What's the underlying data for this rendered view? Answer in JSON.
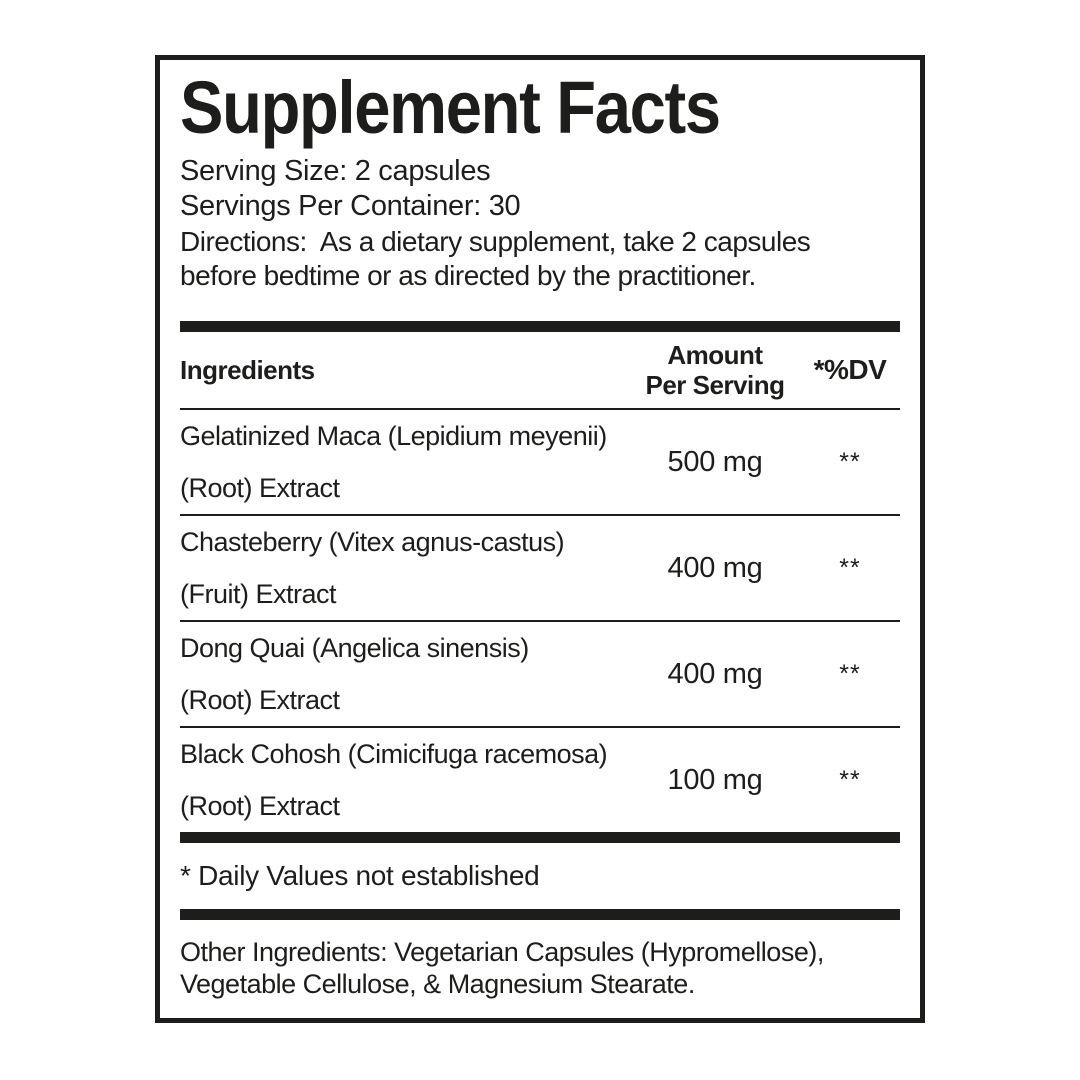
{
  "label": {
    "title": "Supplement Facts",
    "serving_size": "Serving Size: 2 capsules",
    "servings_per_container": "Servings Per Container: 30",
    "directions": "Directions:  As a dietary supplement, take 2 capsules\nbefore bedtime or as directed by the practitioner.",
    "table": {
      "headers": {
        "ingredients": "Ingredients",
        "amount_line1": "Amount",
        "amount_line2": "Per Serving",
        "dv": "*%DV"
      },
      "rows": [
        {
          "name_line1": "Gelatinized Maca (Lepidium meyenii)",
          "name_line2": "(Root) Extract",
          "amount": "500 mg",
          "dv": "**"
        },
        {
          "name_line1": "Chasteberry (Vitex agnus-castus)",
          "name_line2": "(Fruit) Extract",
          "amount": "400 mg",
          "dv": "**"
        },
        {
          "name_line1": "Dong Quai (Angelica sinensis)",
          "name_line2": "(Root) Extract",
          "amount": "400 mg",
          "dv": "**"
        },
        {
          "name_line1": "Black Cohosh (Cimicifuga racemosa)",
          "name_line2": "(Root) Extract",
          "amount": "100 mg",
          "dv": "**"
        }
      ]
    },
    "footnote": "* Daily Values not established",
    "other_ingredients": "Other Ingredients: Vegetarian Capsules (Hypromellose),\nVegetable Cellulose, & Magnesium Stearate."
  },
  "colors": {
    "text": "#1d1d1b",
    "background": "#ffffff"
  }
}
